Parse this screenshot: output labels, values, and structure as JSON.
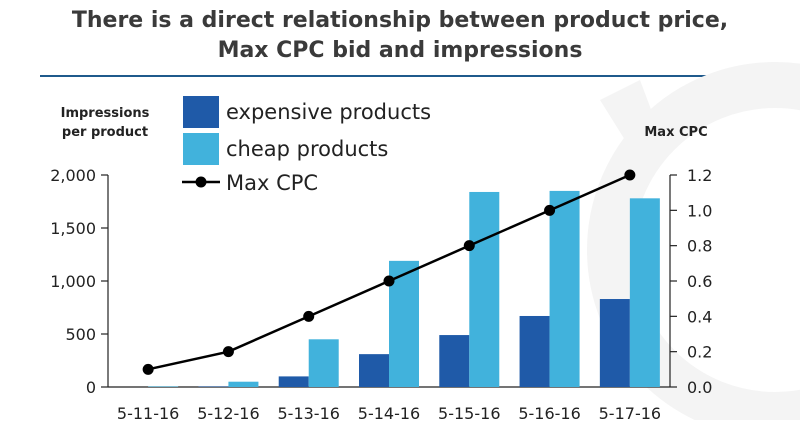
{
  "chart_data": {
    "type": "bar",
    "title_line1": "There is a direct relationship between product price,",
    "title_line2": "Max CPC bid and impressions",
    "ylabel_left_line1": "Impressions",
    "ylabel_left_line2": "per product",
    "ylabel_right": "Max CPC",
    "categories": [
      "5-11-16",
      "5-12-16",
      "5-13-16",
      "5-14-16",
      "5-15-16",
      "5-16-16",
      "5-17-16"
    ],
    "left_ticks": [
      "0",
      "500",
      "1,000",
      "1,500",
      "2,000"
    ],
    "right_ticks": [
      "0.0",
      "0.2",
      "0.4",
      "0.6",
      "0.8",
      "1.0",
      "1.2"
    ],
    "ylim_left": [
      0,
      2000
    ],
    "ylim_right": [
      0,
      1.2
    ],
    "series": [
      {
        "name": "expensive products",
        "type": "bar",
        "axis": "left",
        "color": "#1f5aa8",
        "values": [
          0,
          5,
          100,
          310,
          490,
          670,
          830
        ]
      },
      {
        "name": "cheap products",
        "type": "bar",
        "axis": "left",
        "color": "#41b2dc",
        "values": [
          5,
          50,
          450,
          1190,
          1840,
          1850,
          1780
        ]
      },
      {
        "name": "Max CPC",
        "type": "line",
        "axis": "right",
        "color": "#000000",
        "values": [
          0.1,
          0.2,
          0.4,
          0.6,
          0.8,
          1.0,
          1.2
        ]
      }
    ],
    "legend_position": "top-left",
    "grid": false
  }
}
